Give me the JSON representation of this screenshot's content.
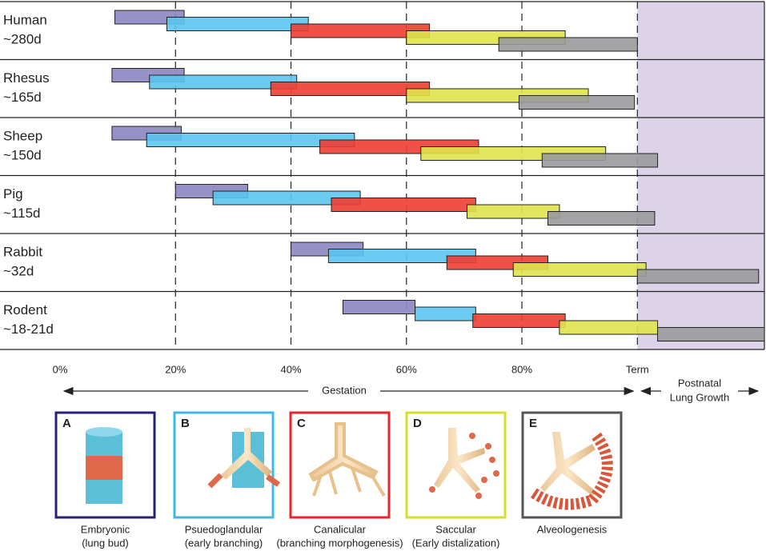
{
  "chart_data": {
    "type": "range_bar",
    "categories": [
      "Human",
      "Rhesus",
      "Sheep",
      "Pig",
      "Rabbit",
      "Rodent"
    ],
    "durations": [
      "~280d",
      "~165d",
      "~150d",
      "~115d",
      "~32d",
      "~18-21d"
    ],
    "xlim": [
      0,
      122
    ],
    "xticks": [
      {
        "value": 0,
        "label": "0%"
      },
      {
        "value": 20,
        "label": "20%"
      },
      {
        "value": 40,
        "label": "40%"
      },
      {
        "value": 60,
        "label": "60%"
      },
      {
        "value": 80,
        "label": "80%"
      },
      {
        "value": 100,
        "label": "Term"
      }
    ],
    "gestation_label": "Gestation",
    "postnatal_label": [
      "Postnatal",
      "Lung Growth"
    ],
    "series": [
      {
        "name": "Embryonic",
        "subtitle": "(lung bud)",
        "panel": "A",
        "color": "#8b85c1",
        "border": "#23237a",
        "values": [
          [
            9.5,
            21.5
          ],
          [
            9,
            21.5
          ],
          [
            9,
            21
          ],
          [
            20,
            32.5
          ],
          [
            40,
            52.5
          ],
          [
            49,
            61.5
          ]
        ]
      },
      {
        "name": "Psuedoglandular",
        "subtitle": "(early branching)",
        "panel": "B",
        "color": "#5bc5ee",
        "border": "#3bb8e6",
        "values": [
          [
            18.5,
            43
          ],
          [
            15.5,
            41
          ],
          [
            15,
            51
          ],
          [
            26.5,
            52
          ],
          [
            46.5,
            72
          ],
          [
            61.5,
            72
          ]
        ]
      },
      {
        "name": "Canalicular",
        "subtitle": "(branching morphogenesis)",
        "panel": "C",
        "color": "#ee3e33",
        "border": "#e8262a",
        "values": [
          [
            40,
            64
          ],
          [
            36.5,
            64
          ],
          [
            45,
            72.5
          ],
          [
            47,
            72
          ],
          [
            67,
            84.5
          ],
          [
            71.5,
            87.5
          ]
        ]
      },
      {
        "name": "Saccular",
        "subtitle": "(Early distalization)",
        "panel": "D",
        "color": "#dfe34a",
        "border": "#d8dc2a",
        "values": [
          [
            60,
            87.5
          ],
          [
            60,
            91.5
          ],
          [
            62.5,
            94.5
          ],
          [
            70.5,
            86.5
          ],
          [
            78.5,
            101.5
          ],
          [
            86.5,
            103.5
          ]
        ]
      },
      {
        "name": "Alveologenesis",
        "panel": "E",
        "color": "#9a9a9c",
        "border": "#555555",
        "values": [
          [
            76,
            100
          ],
          [
            79.5,
            99.5
          ],
          [
            83.5,
            103.5
          ],
          [
            84.5,
            103
          ],
          [
            100,
            121
          ],
          [
            103.5,
            122
          ]
        ]
      }
    ]
  }
}
